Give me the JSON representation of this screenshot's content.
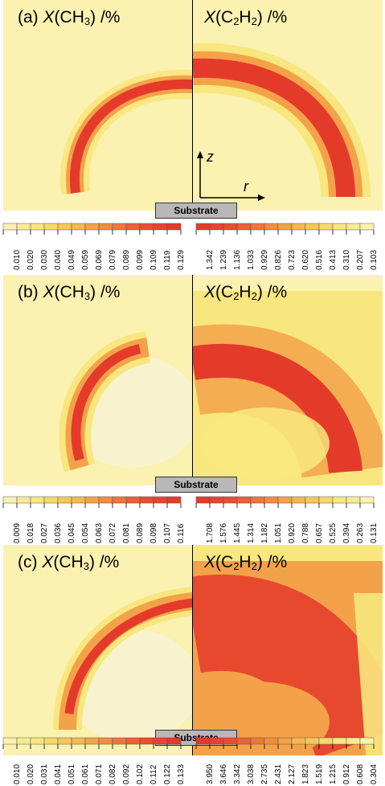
{
  "panels": [
    {
      "label": "(a)",
      "ch3_title": "CH",
      "ch3_sub": "3",
      "c2h2_title": "C",
      "c2h2_sub1": "2",
      "c2h2_mid": "H",
      "c2h2_sub2": "2",
      "x": "X",
      "unit": " /%",
      "axis_z": "z",
      "axis_r": "r",
      "substrate": "Substrate",
      "ch3_scale": [
        "0.010",
        "0.020",
        "0.030",
        "0.040",
        "0.049",
        "0.059",
        "0.069",
        "0.079",
        "0.089",
        "0.099",
        "0.109",
        "0.119",
        "0.129"
      ],
      "c2h2_scale": [
        "1.342",
        "1.239",
        "1.136",
        "1.033",
        "0.929",
        "0.826",
        "0.723",
        "0.620",
        "0.516",
        "0.413",
        "0.310",
        "0.207",
        "0.103"
      ]
    },
    {
      "label": "(b)",
      "ch3_title": "CH",
      "ch3_sub": "3",
      "c2h2_title": "C",
      "c2h2_sub1": "2",
      "c2h2_mid": "H",
      "c2h2_sub2": "2",
      "x": "X",
      "unit": " /%",
      "substrate": "Substrate",
      "ch3_scale": [
        "0.009",
        "0.018",
        "0.027",
        "0.036",
        "0.045",
        "0.054",
        "0.063",
        "0.072",
        "0.081",
        "0.089",
        "0.098",
        "0.107",
        "0.116"
      ],
      "c2h2_scale": [
        "1.708",
        "1.576",
        "1.445",
        "1.314",
        "1.182",
        "1.051",
        "0.920",
        "0.788",
        "0.657",
        "0.525",
        "0.394",
        "0.263",
        "0.131"
      ]
    },
    {
      "label": "(c)",
      "ch3_title": "CH",
      "ch3_sub": "3",
      "c2h2_title": "C",
      "c2h2_sub1": "2",
      "c2h2_mid": "H",
      "c2h2_sub2": "2",
      "x": "X",
      "unit": " /%",
      "substrate": "Substrate",
      "ch3_scale": [
        "0.010",
        "0.020",
        "0.031",
        "0.041",
        "0.051",
        "0.061",
        "0.071",
        "0.082",
        "0.092",
        "0.102",
        "0.112",
        "0.122",
        "0.133"
      ],
      "c2h2_scale": [
        "3.950",
        "3.646",
        "3.342",
        "3.038",
        "2.735",
        "2.431",
        "2.127",
        "1.823",
        "1.519",
        "1.215",
        "0.912",
        "0.608",
        "0.304"
      ]
    }
  ],
  "colors": {
    "background": "#fbf1b0",
    "light": "#f8e77e",
    "mid": "#f4a24a",
    "hot": "#e43a2a",
    "axis": "#000000",
    "substrate": "#b8b8b8"
  }
}
